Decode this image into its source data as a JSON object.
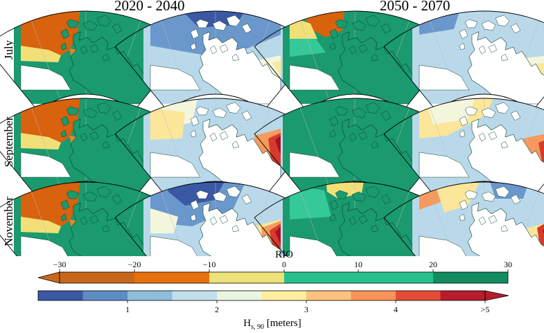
{
  "figure": {
    "period_titles": [
      "2020 - 2040",
      "2050 - 2070"
    ],
    "row_labels": [
      "July",
      "September",
      "November"
    ]
  },
  "panels": [
    {
      "row": "July",
      "period": "2020 - 2040",
      "variable": "RIO",
      "sea": "orange-west-green-east"
    },
    {
      "row": "July",
      "period": "2020 - 2040",
      "variable": "Hs90",
      "sea": "blue-high-arctic"
    },
    {
      "row": "July",
      "period": "2050 - 2070",
      "variable": "RIO",
      "sea": "yellow-orange-west-green-east"
    },
    {
      "row": "July",
      "period": "2050 - 2070",
      "variable": "Hs90",
      "sea": "light-blue"
    },
    {
      "row": "September",
      "period": "2020 - 2040",
      "variable": "RIO",
      "sea": "orange-west-green-east"
    },
    {
      "row": "September",
      "period": "2020 - 2040",
      "variable": "Hs90",
      "sea": "pale-with-red-southeast"
    },
    {
      "row": "September",
      "period": "2050 - 2070",
      "variable": "RIO",
      "sea": "all-green"
    },
    {
      "row": "September",
      "period": "2050 - 2070",
      "variable": "Hs90",
      "sea": "pale-yellow-with-red-southeast"
    },
    {
      "row": "November",
      "period": "2020 - 2040",
      "variable": "RIO",
      "sea": "orange-west-green-east"
    },
    {
      "row": "November",
      "period": "2020 - 2040",
      "variable": "Hs90",
      "sea": "dark-blue-north-red-southeast"
    },
    {
      "row": "November",
      "period": "2050 - 2070",
      "variable": "RIO",
      "sea": "yellow-north-green"
    },
    {
      "row": "November",
      "period": "2050 - 2070",
      "variable": "Hs90",
      "sea": "orange-west-red-southeast"
    }
  ],
  "rio_colorbar": {
    "label": "RIO",
    "ticks": [
      "−30",
      "−20",
      "−10",
      "0",
      "10",
      "20",
      "30"
    ],
    "colors": [
      "#c8661a",
      "#e8700f",
      "#ede27a",
      "#27c08c",
      "#138c5f"
    ],
    "extend": "left"
  },
  "hs_colorbar": {
    "label_main": "H",
    "label_sub": "s, 90",
    "label_unit": " [meters]",
    "ticks": [
      "1",
      "2",
      "3",
      "4",
      ">5"
    ],
    "colors": [
      "#3b58a5",
      "#5e8cc5",
      "#8fbddb",
      "#c2e0ec",
      "#eaf6e0",
      "#fdeea0",
      "#fdc27c",
      "#fa9358",
      "#e24b35",
      "#b71c2c"
    ],
    "extend": "right"
  },
  "colors": {
    "land": "#1a9a6e",
    "land_outline": "#0b3f2f",
    "rio_orange": "#d8620d",
    "rio_orange_light": "#ef8420",
    "rio_yellow": "#f2df78",
    "rio_green_light": "#35c898",
    "hs_dark_blue": "#3b58a5",
    "hs_mid_blue": "#6b98cc",
    "hs_light_blue": "#b9d9ea",
    "hs_pale": "#f4f6dc",
    "hs_yellow": "#fbe69a",
    "hs_orange": "#f59a5c",
    "hs_red": "#d63a2d",
    "hs_dark_red": "#a81024"
  }
}
